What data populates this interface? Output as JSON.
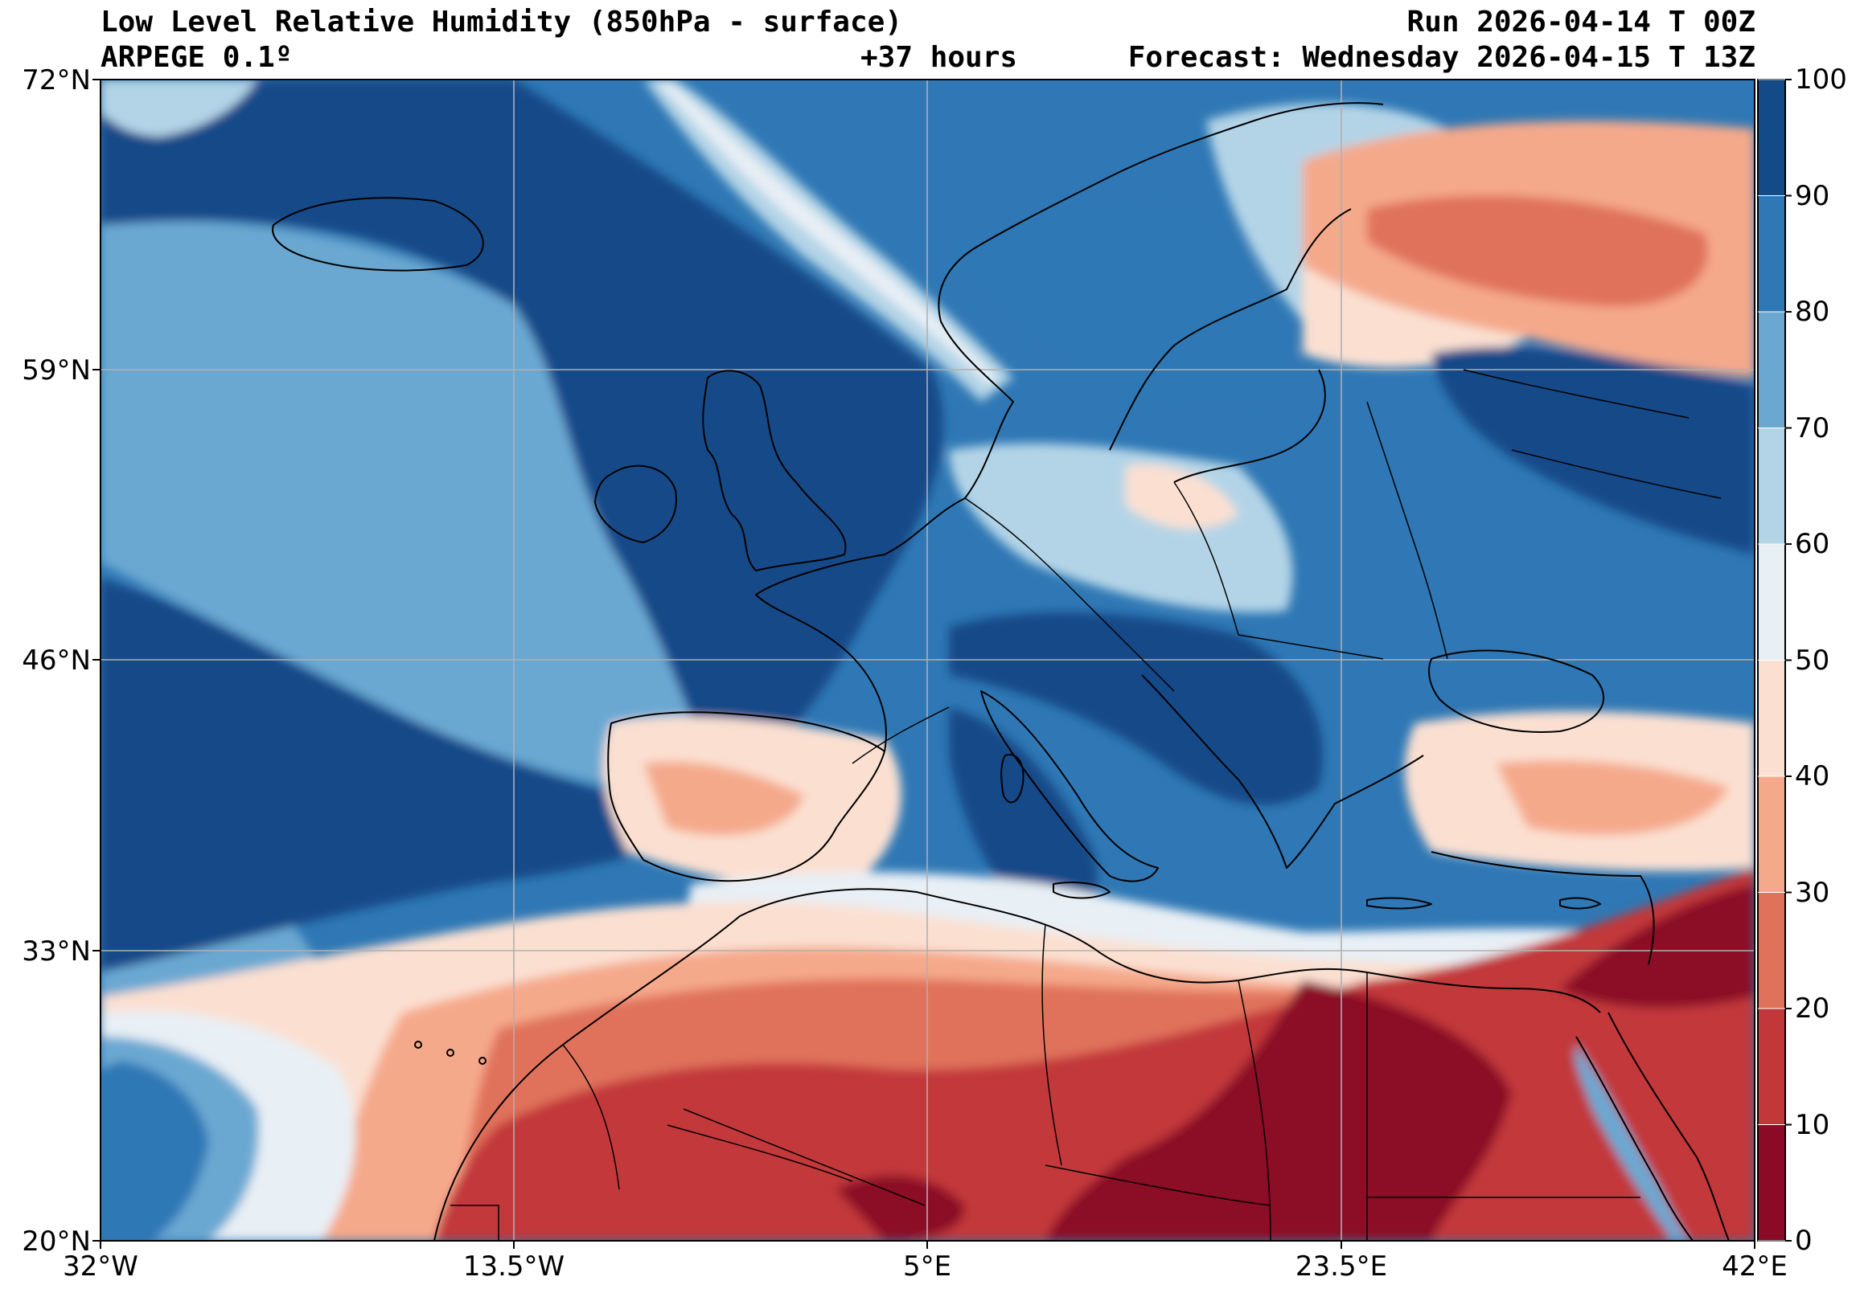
{
  "header": {
    "title": "Low Level Relative Humidity (850hPa - surface)",
    "model": "ARPEGE 0.1º",
    "lead_time": "+37 hours",
    "run": "Run 2026-04-14 T 00Z",
    "forecast": "Forecast: Wednesday 2026-04-15 T 13Z"
  },
  "map": {
    "projection": "equirectangular",
    "lon_range": [
      -32,
      42
    ],
    "lat_range": [
      20,
      72
    ],
    "lat_ticks": [
      {
        "value": 72,
        "label": "72°N"
      },
      {
        "value": 59,
        "label": "59°N"
      },
      {
        "value": 46,
        "label": "46°N"
      },
      {
        "value": 33,
        "label": "33°N"
      },
      {
        "value": 20,
        "label": "20°N"
      }
    ],
    "lon_ticks": [
      {
        "value": -32,
        "label": "32°W"
      },
      {
        "value": -13.5,
        "label": "13.5°W"
      },
      {
        "value": 5,
        "label": "5°E"
      },
      {
        "value": 23.5,
        "label": "23.5°E"
      },
      {
        "value": 42,
        "label": "42°E"
      }
    ],
    "grid": true
  },
  "colorbar": {
    "levels": [
      0,
      10,
      20,
      30,
      40,
      50,
      60,
      70,
      80,
      90,
      100
    ],
    "labels": [
      "0",
      "10",
      "20",
      "30",
      "40",
      "50",
      "60",
      "70",
      "80",
      "90",
      "100"
    ],
    "colors": [
      "#8b0a26",
      "#c2383a",
      "#e0725c",
      "#f5a98b",
      "#fbe0d1",
      "#e8eff5",
      "#b3d4e7",
      "#6aa8d2",
      "#2f78b5",
      "#134a88"
    ]
  }
}
